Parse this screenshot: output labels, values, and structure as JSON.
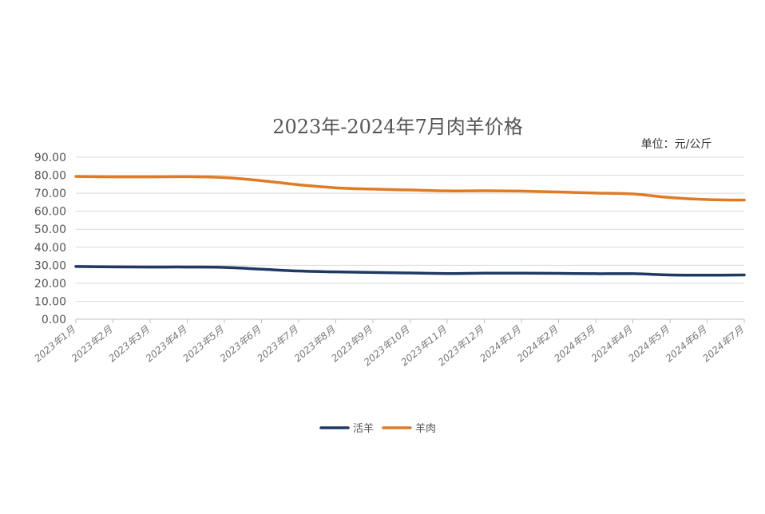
{
  "chart_data": {
    "type": "line",
    "title": "2023年-2024年7月肉羊价格",
    "unit_label": "单位：元/公斤",
    "xlabel": "",
    "ylabel": "",
    "ylim": [
      0,
      90
    ],
    "yticks": [
      "0.00",
      "10.00",
      "20.00",
      "30.00",
      "40.00",
      "50.00",
      "60.00",
      "70.00",
      "80.00",
      "90.00"
    ],
    "categories": [
      "2023年1月",
      "2023年2月",
      "2023年3月",
      "2023年4月",
      "2023年5月",
      "2023年6月",
      "2023年7月",
      "2023年8月",
      "2023年9月",
      "2023年10月",
      "2023年11月",
      "2023年12月",
      "2024年1月",
      "2024年2月",
      "2024年3月",
      "2024年4月",
      "2024年5月",
      "2024年6月",
      "2024年7月"
    ],
    "series": [
      {
        "name": "活羊",
        "color": "#1f3864",
        "values": [
          29.3,
          29.1,
          29.0,
          29.0,
          28.8,
          27.8,
          26.8,
          26.3,
          26.0,
          25.7,
          25.4,
          25.6,
          25.6,
          25.5,
          25.3,
          25.3,
          24.6,
          24.5,
          24.6
        ]
      },
      {
        "name": "羊肉",
        "color": "#e07b24",
        "values": [
          79.3,
          79.1,
          79.1,
          79.2,
          78.7,
          77.0,
          74.7,
          73.0,
          72.3,
          71.8,
          71.3,
          71.4,
          71.2,
          70.7,
          70.1,
          69.6,
          67.6,
          66.5,
          66.2
        ]
      }
    ],
    "grid": true,
    "legend_position": "bottom-center"
  }
}
